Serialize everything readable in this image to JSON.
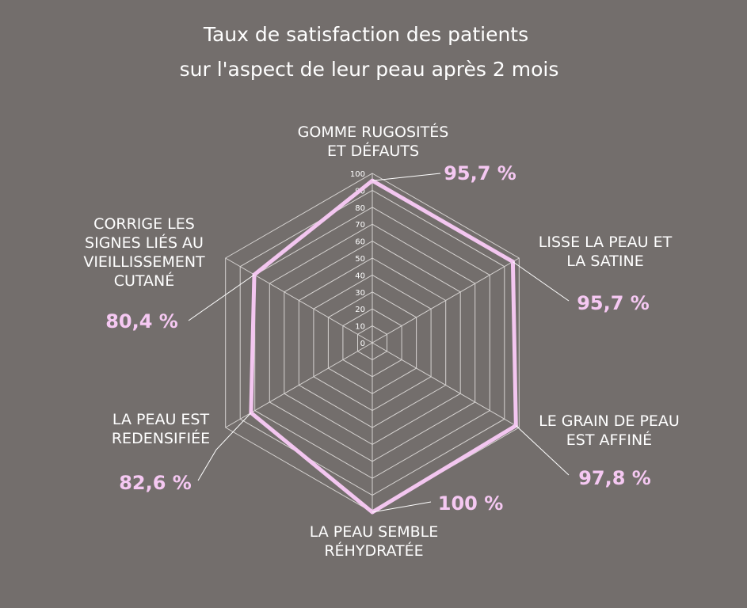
{
  "chart_data": {
    "type": "radar",
    "title": [
      "Taux de satisfaction des patients",
      "sur l'aspect de leur peau après 2 mois"
    ],
    "ylim": [
      0,
      100
    ],
    "ticks": [
      "0",
      "10",
      "20",
      "30",
      "40",
      "50",
      "60",
      "70",
      "80",
      "90",
      "100"
    ],
    "grid": true,
    "categories": [
      [
        "GOMME RUGOSITÉS",
        "ET DÉFAUTS"
      ],
      [
        "LISSE LA PEAU ET",
        "LA SATINE"
      ],
      [
        "LE GRAIN DE PEAU",
        "EST AFFINÉ"
      ],
      [
        "LA PEAU SEMBLE",
        "RÉHYDRATÉE"
      ],
      [
        "LA PEAU EST",
        "REDENSIFIÉE"
      ],
      [
        "CORRIGE LES",
        "SIGNES LIÉS AU",
        "VIEILLISSEMENT",
        "CUTANÉ"
      ]
    ],
    "values": [
      95.7,
      95.7,
      97.8,
      100,
      82.6,
      80.4
    ],
    "value_labels": [
      "95,7 %",
      "95,7 %",
      "97,8 %",
      "100 %",
      "82,6 %",
      "80,4 %"
    ],
    "colors": {
      "background": "#736e6c",
      "series": "#f3c6f0",
      "value_text": "#f5c8f2",
      "grid": "#d6d3d1"
    }
  }
}
